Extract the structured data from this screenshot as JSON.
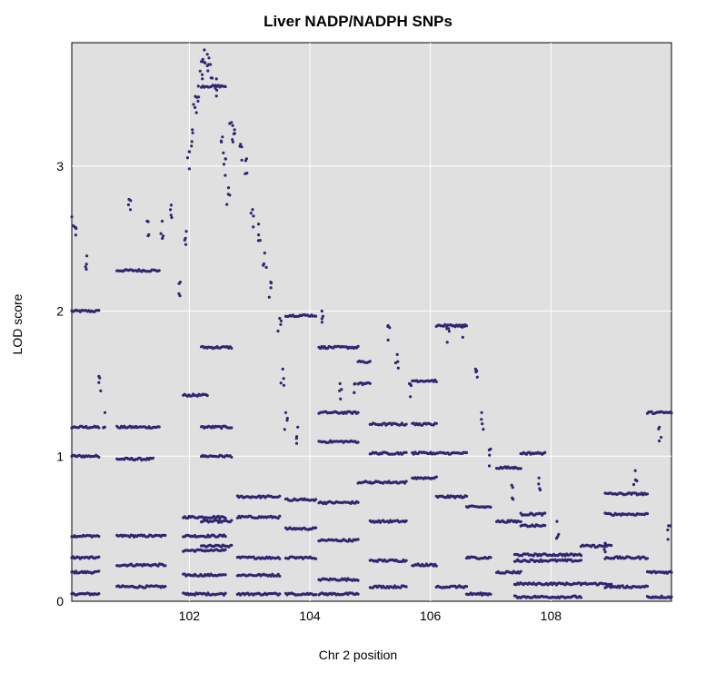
{
  "chart_data": {
    "type": "scatter",
    "title": "Liver NADP/NADPH SNPs",
    "xlabel": "Chr 2 position",
    "ylabel": "LOD score",
    "xlim": [
      100.05,
      110.0
    ],
    "ylim": [
      0,
      3.85
    ],
    "xticks": [
      102,
      104,
      106,
      108
    ],
    "xtick_labels": [
      "102",
      "104",
      "106",
      "108"
    ],
    "yticks": [
      0,
      1,
      2,
      3
    ],
    "ytick_labels": [
      "0",
      "1",
      "2",
      "3"
    ],
    "grid": true,
    "colors": {
      "points": "#2e2770",
      "panel": "#e0e0e0",
      "grid": "#ffffff"
    },
    "series": [
      {
        "values_note": "",
        "segments": [
          [
            100.05,
            100.5,
            2.0
          ],
          [
            100.05,
            100.5,
            1.2
          ],
          [
            100.05,
            100.5,
            1.0
          ],
          [
            100.05,
            100.5,
            0.45
          ],
          [
            100.05,
            100.5,
            0.3
          ],
          [
            100.05,
            100.5,
            0.2
          ],
          [
            100.05,
            100.5,
            0.05
          ],
          [
            100.8,
            101.5,
            2.28
          ],
          [
            100.8,
            101.5,
            1.2
          ],
          [
            100.8,
            101.4,
            0.98
          ],
          [
            100.8,
            101.6,
            0.45
          ],
          [
            100.8,
            101.6,
            0.25
          ],
          [
            100.8,
            101.6,
            0.1
          ],
          [
            101.9,
            102.3,
            1.42
          ],
          [
            101.9,
            102.6,
            0.58
          ],
          [
            101.9,
            102.6,
            0.45
          ],
          [
            101.9,
            102.6,
            0.35
          ],
          [
            101.9,
            102.6,
            0.18
          ],
          [
            101.9,
            102.6,
            0.05
          ],
          [
            102.2,
            102.6,
            3.55
          ],
          [
            102.2,
            102.7,
            1.75
          ],
          [
            102.2,
            102.7,
            1.2
          ],
          [
            102.2,
            102.7,
            1.0
          ],
          [
            102.2,
            102.7,
            0.55
          ],
          [
            102.2,
            102.7,
            0.38
          ],
          [
            102.8,
            103.5,
            0.72
          ],
          [
            102.8,
            103.5,
            0.58
          ],
          [
            102.8,
            103.5,
            0.3
          ],
          [
            102.8,
            103.5,
            0.18
          ],
          [
            102.8,
            103.5,
            0.05
          ],
          [
            103.6,
            104.1,
            1.97
          ],
          [
            103.6,
            104.1,
            0.7
          ],
          [
            103.6,
            104.1,
            0.5
          ],
          [
            103.6,
            104.1,
            0.3
          ],
          [
            103.6,
            104.1,
            0.05
          ],
          [
            104.15,
            104.8,
            1.75
          ],
          [
            104.15,
            104.8,
            1.3
          ],
          [
            104.15,
            104.8,
            1.1
          ],
          [
            104.15,
            104.8,
            0.68
          ],
          [
            104.15,
            104.8,
            0.42
          ],
          [
            104.15,
            104.8,
            0.15
          ],
          [
            104.15,
            104.8,
            0.05
          ],
          [
            104.8,
            105.0,
            1.65
          ],
          [
            104.8,
            105.0,
            1.5
          ],
          [
            104.8,
            105.0,
            0.82
          ],
          [
            105.0,
            105.6,
            1.22
          ],
          [
            105.0,
            105.6,
            1.02
          ],
          [
            105.0,
            105.6,
            0.82
          ],
          [
            105.0,
            105.6,
            0.55
          ],
          [
            105.0,
            105.6,
            0.28
          ],
          [
            105.0,
            105.6,
            0.1
          ],
          [
            105.7,
            106.1,
            1.52
          ],
          [
            105.7,
            106.1,
            1.22
          ],
          [
            105.7,
            106.1,
            1.02
          ],
          [
            105.7,
            106.1,
            0.85
          ],
          [
            105.7,
            106.1,
            0.25
          ],
          [
            106.1,
            106.6,
            1.9
          ],
          [
            106.1,
            106.6,
            1.02
          ],
          [
            106.1,
            106.6,
            0.72
          ],
          [
            106.1,
            106.6,
            0.1
          ],
          [
            106.6,
            107.0,
            0.65
          ],
          [
            106.6,
            107.0,
            0.3
          ],
          [
            106.6,
            107.0,
            0.05
          ],
          [
            107.1,
            107.5,
            0.92
          ],
          [
            107.1,
            107.5,
            0.55
          ],
          [
            107.1,
            107.5,
            0.2
          ],
          [
            107.5,
            107.9,
            1.02
          ],
          [
            107.5,
            107.9,
            0.6
          ],
          [
            107.5,
            107.9,
            0.52
          ],
          [
            107.4,
            108.5,
            0.32
          ],
          [
            107.4,
            108.5,
            0.28
          ],
          [
            107.4,
            108.5,
            0.12
          ],
          [
            107.4,
            108.5,
            0.03
          ],
          [
            108.5,
            109.0,
            0.38
          ],
          [
            108.5,
            109.0,
            0.12
          ],
          [
            108.9,
            109.6,
            0.74
          ],
          [
            108.9,
            109.6,
            0.6
          ],
          [
            108.9,
            109.6,
            0.3
          ],
          [
            108.9,
            109.6,
            0.1
          ],
          [
            109.6,
            110.0,
            1.3
          ],
          [
            109.6,
            110.0,
            0.2
          ],
          [
            109.6,
            110.0,
            0.03
          ]
        ],
        "peak_points": [
          [
            100.05,
            2.65
          ],
          [
            100.1,
            2.58
          ],
          [
            100.3,
            2.38
          ],
          [
            100.5,
            1.55
          ],
          [
            100.6,
            1.3
          ],
          [
            101.0,
            2.77
          ],
          [
            101.3,
            2.62
          ],
          [
            101.55,
            2.62
          ],
          [
            101.7,
            2.73
          ],
          [
            101.85,
            2.2
          ],
          [
            101.95,
            2.55
          ],
          [
            102.0,
            3.1
          ],
          [
            102.05,
            3.25
          ],
          [
            102.1,
            3.48
          ],
          [
            102.15,
            3.55
          ],
          [
            102.2,
            3.72
          ],
          [
            102.25,
            3.8
          ],
          [
            102.3,
            3.77
          ],
          [
            102.35,
            3.7
          ],
          [
            102.45,
            3.6
          ],
          [
            102.55,
            3.2
          ],
          [
            102.6,
            3.05
          ],
          [
            102.65,
            2.85
          ],
          [
            102.7,
            3.3
          ],
          [
            102.75,
            3.25
          ],
          [
            102.85,
            3.15
          ],
          [
            102.95,
            3.05
          ],
          [
            103.05,
            2.7
          ],
          [
            103.15,
            2.6
          ],
          [
            103.25,
            2.4
          ],
          [
            103.35,
            2.2
          ],
          [
            103.5,
            1.95
          ],
          [
            103.55,
            1.6
          ],
          [
            103.6,
            1.3
          ],
          [
            103.8,
            1.2
          ],
          [
            104.2,
            2.0
          ],
          [
            104.5,
            1.5
          ],
          [
            104.75,
            1.5
          ],
          [
            105.3,
            1.9
          ],
          [
            105.45,
            1.7
          ],
          [
            105.65,
            1.5
          ],
          [
            106.3,
            1.88
          ],
          [
            106.55,
            1.9
          ],
          [
            106.75,
            1.6
          ],
          [
            106.85,
            1.3
          ],
          [
            107.0,
            1.05
          ],
          [
            107.35,
            0.8
          ],
          [
            107.8,
            0.85
          ],
          [
            108.1,
            0.55
          ],
          [
            108.9,
            0.4
          ],
          [
            109.4,
            0.9
          ],
          [
            109.8,
            1.2
          ],
          [
            109.95,
            0.52
          ]
        ]
      }
    ]
  }
}
